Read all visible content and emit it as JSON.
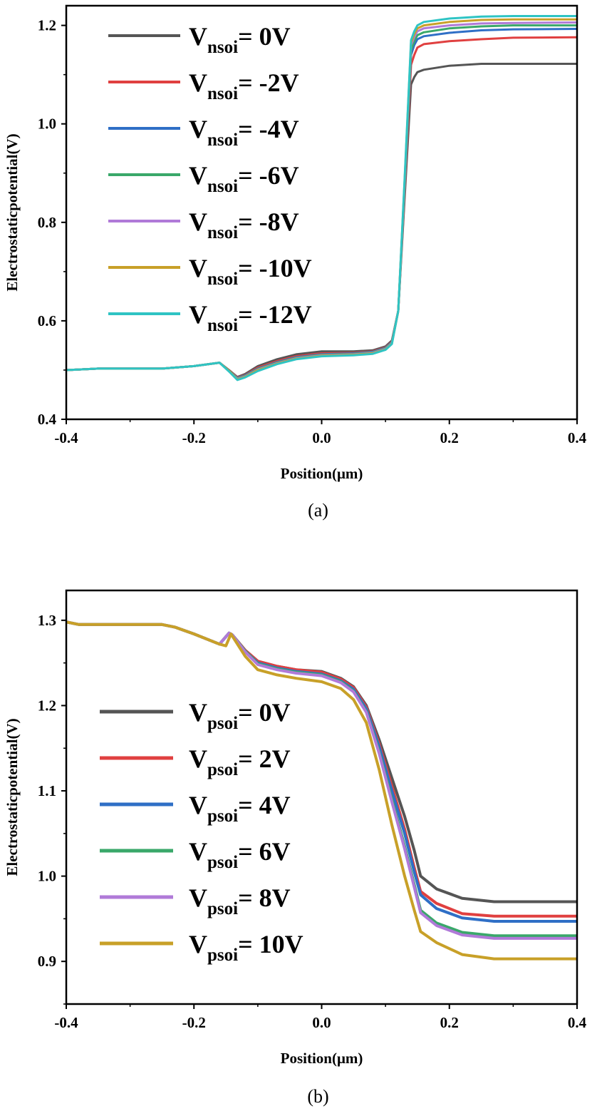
{
  "chart_data": [
    {
      "type": "line",
      "caption": "(a)",
      "xlabel": "Position(μm)",
      "ylabel": "Electrostaticpotential(V)",
      "xlim": [
        -0.4,
        0.4
      ],
      "ylim": [
        0.4,
        1.24
      ],
      "xticks": [
        -0.4,
        -0.2,
        0.0,
        0.2,
        0.4
      ],
      "xtick_labels": [
        "-0.4",
        "-0.2",
        "0.0",
        "0.2",
        "0.4"
      ],
      "yticks": [
        0.4,
        0.6,
        0.8,
        1.0,
        1.2
      ],
      "ytick_labels": [
        "0.4",
        "0.6",
        "0.8",
        "1.0",
        "1.2"
      ],
      "grid": false,
      "legend_position": "top-left",
      "series": [
        {
          "legend_main": "V",
          "legend_sub": "nsoi",
          "legend_value": "=  0V",
          "color": "#555555",
          "x": [
            -0.4,
            -0.35,
            -0.25,
            -0.2,
            -0.16,
            -0.145,
            -0.132,
            -0.12,
            -0.1,
            -0.07,
            -0.04,
            0,
            0.05,
            0.08,
            0.1,
            0.11,
            0.12,
            0.13,
            0.14,
            0.145,
            0.15,
            0.16,
            0.2,
            0.25,
            0.3,
            0.4
          ],
          "y": [
            0.5,
            0.503,
            0.503,
            0.508,
            0.515,
            0.5,
            0.486,
            0.492,
            0.508,
            0.522,
            0.532,
            0.538,
            0.538,
            0.54,
            0.548,
            0.56,
            0.62,
            0.85,
            1.08,
            1.095,
            1.105,
            1.11,
            1.118,
            1.122,
            1.122,
            1.122
          ]
        },
        {
          "legend_main": "V",
          "legend_sub": "nsoi",
          "legend_value": "= -2V",
          "color": "#e04040",
          "x": [
            -0.4,
            -0.35,
            -0.25,
            -0.2,
            -0.16,
            -0.145,
            -0.132,
            -0.12,
            -0.1,
            -0.07,
            -0.04,
            0,
            0.05,
            0.08,
            0.1,
            0.11,
            0.12,
            0.13,
            0.14,
            0.145,
            0.15,
            0.16,
            0.2,
            0.25,
            0.3,
            0.4
          ],
          "y": [
            0.5,
            0.503,
            0.503,
            0.508,
            0.515,
            0.5,
            0.485,
            0.49,
            0.505,
            0.518,
            0.528,
            0.534,
            0.535,
            0.538,
            0.546,
            0.558,
            0.62,
            0.86,
            1.12,
            1.14,
            1.155,
            1.162,
            1.168,
            1.172,
            1.175,
            1.176
          ]
        },
        {
          "legend_main": "V",
          "legend_sub": "nsoi",
          "legend_value": "= -4V",
          "color": "#2f6fc6",
          "x": [
            -0.4,
            -0.35,
            -0.25,
            -0.2,
            -0.16,
            -0.145,
            -0.132,
            -0.12,
            -0.1,
            -0.07,
            -0.04,
            0,
            0.05,
            0.08,
            0.1,
            0.11,
            0.12,
            0.13,
            0.14,
            0.145,
            0.15,
            0.16,
            0.2,
            0.25,
            0.3,
            0.4
          ],
          "y": [
            0.5,
            0.503,
            0.503,
            0.508,
            0.515,
            0.499,
            0.484,
            0.489,
            0.503,
            0.516,
            0.526,
            0.532,
            0.534,
            0.537,
            0.545,
            0.557,
            0.62,
            0.87,
            1.14,
            1.16,
            1.172,
            1.178,
            1.185,
            1.19,
            1.192,
            1.193
          ]
        },
        {
          "legend_main": "V",
          "legend_sub": "nsoi",
          "legend_value": "= -6V",
          "color": "#3aa86a",
          "x": [
            -0.4,
            -0.35,
            -0.25,
            -0.2,
            -0.16,
            -0.145,
            -0.132,
            -0.12,
            -0.1,
            -0.07,
            -0.04,
            0,
            0.05,
            0.08,
            0.1,
            0.11,
            0.12,
            0.13,
            0.14,
            0.145,
            0.15,
            0.16,
            0.2,
            0.25,
            0.3,
            0.4
          ],
          "y": [
            0.5,
            0.503,
            0.503,
            0.508,
            0.515,
            0.499,
            0.483,
            0.488,
            0.502,
            0.515,
            0.525,
            0.531,
            0.533,
            0.536,
            0.544,
            0.556,
            0.62,
            0.875,
            1.15,
            1.168,
            1.18,
            1.186,
            1.194,
            1.198,
            1.2,
            1.2
          ]
        },
        {
          "legend_main": "V",
          "legend_sub": "nsoi",
          "legend_value": "= -8V",
          "color": "#b07ad8",
          "x": [
            -0.4,
            -0.35,
            -0.25,
            -0.2,
            -0.16,
            -0.145,
            -0.132,
            -0.12,
            -0.1,
            -0.07,
            -0.04,
            0,
            0.05,
            0.08,
            0.1,
            0.11,
            0.12,
            0.13,
            0.14,
            0.145,
            0.15,
            0.16,
            0.2,
            0.25,
            0.3,
            0.4
          ],
          "y": [
            0.5,
            0.503,
            0.503,
            0.508,
            0.515,
            0.498,
            0.482,
            0.487,
            0.501,
            0.514,
            0.524,
            0.53,
            0.532,
            0.535,
            0.543,
            0.555,
            0.62,
            0.88,
            1.16,
            1.176,
            1.188,
            1.194,
            1.2,
            1.204,
            1.205,
            1.206
          ]
        },
        {
          "legend_main": "V",
          "legend_sub": "nsoi",
          "legend_value": "= -10V",
          "color": "#c8a028",
          "x": [
            -0.4,
            -0.35,
            -0.25,
            -0.2,
            -0.16,
            -0.145,
            -0.132,
            -0.12,
            -0.1,
            -0.07,
            -0.04,
            0,
            0.05,
            0.08,
            0.1,
            0.11,
            0.12,
            0.13,
            0.14,
            0.145,
            0.15,
            0.16,
            0.2,
            0.25,
            0.3,
            0.4
          ],
          "y": [
            0.5,
            0.503,
            0.503,
            0.508,
            0.515,
            0.498,
            0.481,
            0.486,
            0.5,
            0.513,
            0.523,
            0.529,
            0.531,
            0.534,
            0.542,
            0.554,
            0.62,
            0.885,
            1.165,
            1.182,
            1.194,
            1.2,
            1.207,
            1.211,
            1.212,
            1.212
          ]
        },
        {
          "legend_main": "V",
          "legend_sub": "nsoi",
          "legend_value": "= -12V",
          "color": "#2fc4c4",
          "x": [
            -0.4,
            -0.35,
            -0.25,
            -0.2,
            -0.16,
            -0.145,
            -0.132,
            -0.12,
            -0.1,
            -0.07,
            -0.04,
            0,
            0.05,
            0.08,
            0.1,
            0.11,
            0.12,
            0.13,
            0.14,
            0.145,
            0.15,
            0.16,
            0.2,
            0.25,
            0.3,
            0.4
          ],
          "y": [
            0.5,
            0.503,
            0.503,
            0.508,
            0.515,
            0.497,
            0.48,
            0.485,
            0.498,
            0.512,
            0.522,
            0.528,
            0.53,
            0.533,
            0.541,
            0.553,
            0.62,
            0.89,
            1.17,
            1.188,
            1.2,
            1.207,
            1.214,
            1.218,
            1.219,
            1.219
          ]
        }
      ]
    },
    {
      "type": "line",
      "caption": "(b)",
      "xlabel": "Position(μm)",
      "ylabel": "Electrostaticpotential(V)",
      "xlim": [
        -0.4,
        0.4
      ],
      "ylim": [
        0.85,
        1.335
      ],
      "xticks": [
        -0.4,
        -0.2,
        0.0,
        0.2,
        0.4
      ],
      "xtick_labels": [
        "-0.4",
        "-0.2",
        "0.0",
        "0.2",
        "0.4"
      ],
      "yticks": [
        0.9,
        1.0,
        1.1,
        1.2,
        1.3
      ],
      "ytick_labels": [
        "0.9",
        "1.0",
        "1.1",
        "1.2",
        "1.3"
      ],
      "grid": false,
      "legend_position": "center-left",
      "series": [
        {
          "legend_main": "V",
          "legend_sub": "psoi",
          "legend_value": "=  0V",
          "color": "#555555",
          "x": [
            -0.4,
            -0.38,
            -0.3,
            -0.25,
            -0.23,
            -0.2,
            -0.16,
            -0.145,
            -0.14,
            -0.12,
            -0.1,
            -0.07,
            -0.04,
            0,
            0.03,
            0.05,
            0.07,
            0.09,
            0.11,
            0.13,
            0.145,
            0.155,
            0.18,
            0.22,
            0.27,
            0.4
          ],
          "y": [
            1.298,
            1.295,
            1.295,
            1.295,
            1.292,
            1.284,
            1.272,
            1.285,
            1.283,
            1.265,
            1.252,
            1.246,
            1.242,
            1.24,
            1.232,
            1.222,
            1.2,
            1.16,
            1.115,
            1.07,
            1.03,
            1.0,
            0.985,
            0.974,
            0.97,
            0.97
          ]
        },
        {
          "legend_main": "V",
          "legend_sub": "psoi",
          "legend_value": "=  2V",
          "color": "#e04040",
          "x": [
            -0.4,
            -0.38,
            -0.3,
            -0.25,
            -0.23,
            -0.2,
            -0.16,
            -0.145,
            -0.14,
            -0.12,
            -0.1,
            -0.07,
            -0.04,
            0,
            0.03,
            0.05,
            0.07,
            0.09,
            0.11,
            0.13,
            0.145,
            0.155,
            0.18,
            0.22,
            0.27,
            0.4
          ],
          "y": [
            1.298,
            1.295,
            1.295,
            1.295,
            1.292,
            1.284,
            1.272,
            1.285,
            1.283,
            1.265,
            1.252,
            1.246,
            1.242,
            1.239,
            1.231,
            1.221,
            1.198,
            1.155,
            1.105,
            1.055,
            1.01,
            0.982,
            0.968,
            0.956,
            0.953,
            0.953
          ]
        },
        {
          "legend_main": "V",
          "legend_sub": "psoi",
          "legend_value": "=  4V",
          "color": "#2f6fc6",
          "x": [
            -0.4,
            -0.38,
            -0.3,
            -0.25,
            -0.23,
            -0.2,
            -0.16,
            -0.145,
            -0.14,
            -0.12,
            -0.1,
            -0.07,
            -0.04,
            0,
            0.03,
            0.05,
            0.07,
            0.09,
            0.11,
            0.13,
            0.145,
            0.155,
            0.18,
            0.22,
            0.27,
            0.4
          ],
          "y": [
            1.298,
            1.295,
            1.295,
            1.295,
            1.292,
            1.284,
            1.272,
            1.285,
            1.283,
            1.264,
            1.25,
            1.244,
            1.24,
            1.237,
            1.229,
            1.219,
            1.196,
            1.152,
            1.1,
            1.05,
            1.005,
            0.978,
            0.962,
            0.951,
            0.947,
            0.947
          ]
        },
        {
          "legend_main": "V",
          "legend_sub": "psoi",
          "legend_value": "=  6V",
          "color": "#3aa86a",
          "x": [
            -0.4,
            -0.38,
            -0.3,
            -0.25,
            -0.23,
            -0.2,
            -0.16,
            -0.145,
            -0.14,
            -0.12,
            -0.1,
            -0.07,
            -0.04,
            0,
            0.03,
            0.05,
            0.07,
            0.09,
            0.11,
            0.13,
            0.145,
            0.155,
            0.18,
            0.22,
            0.27,
            0.4
          ],
          "y": [
            1.298,
            1.295,
            1.295,
            1.295,
            1.292,
            1.284,
            1.272,
            1.285,
            1.283,
            1.264,
            1.249,
            1.243,
            1.239,
            1.236,
            1.228,
            1.217,
            1.193,
            1.146,
            1.09,
            1.035,
            0.99,
            0.96,
            0.945,
            0.934,
            0.93,
            0.93
          ]
        },
        {
          "legend_main": "V",
          "legend_sub": "psoi",
          "legend_value": "=  8V",
          "color": "#b07ad8",
          "x": [
            -0.4,
            -0.38,
            -0.3,
            -0.25,
            -0.23,
            -0.2,
            -0.16,
            -0.145,
            -0.14,
            -0.12,
            -0.1,
            -0.07,
            -0.04,
            0,
            0.03,
            0.05,
            0.07,
            0.09,
            0.11,
            0.13,
            0.145,
            0.155,
            0.18,
            0.22,
            0.27,
            0.4
          ],
          "y": [
            1.298,
            1.295,
            1.295,
            1.295,
            1.292,
            1.284,
            1.272,
            1.285,
            1.283,
            1.263,
            1.248,
            1.242,
            1.238,
            1.235,
            1.227,
            1.216,
            1.192,
            1.144,
            1.087,
            1.032,
            0.987,
            0.957,
            0.942,
            0.931,
            0.927,
            0.927
          ]
        },
        {
          "legend_main": "V",
          "legend_sub": "psoi",
          "legend_value": "=  10V",
          "color": "#c8a028",
          "x": [
            -0.4,
            -0.38,
            -0.3,
            -0.25,
            -0.23,
            -0.2,
            -0.16,
            -0.15,
            -0.142,
            -0.12,
            -0.1,
            -0.07,
            -0.04,
            0,
            0.03,
            0.05,
            0.07,
            0.09,
            0.11,
            0.13,
            0.145,
            0.155,
            0.18,
            0.22,
            0.27,
            0.4
          ],
          "y": [
            1.298,
            1.295,
            1.295,
            1.295,
            1.292,
            1.284,
            1.272,
            1.27,
            1.284,
            1.258,
            1.242,
            1.236,
            1.232,
            1.228,
            1.22,
            1.207,
            1.18,
            1.125,
            1.06,
            1.0,
            0.96,
            0.935,
            0.922,
            0.908,
            0.903,
            0.903
          ]
        }
      ]
    }
  ]
}
